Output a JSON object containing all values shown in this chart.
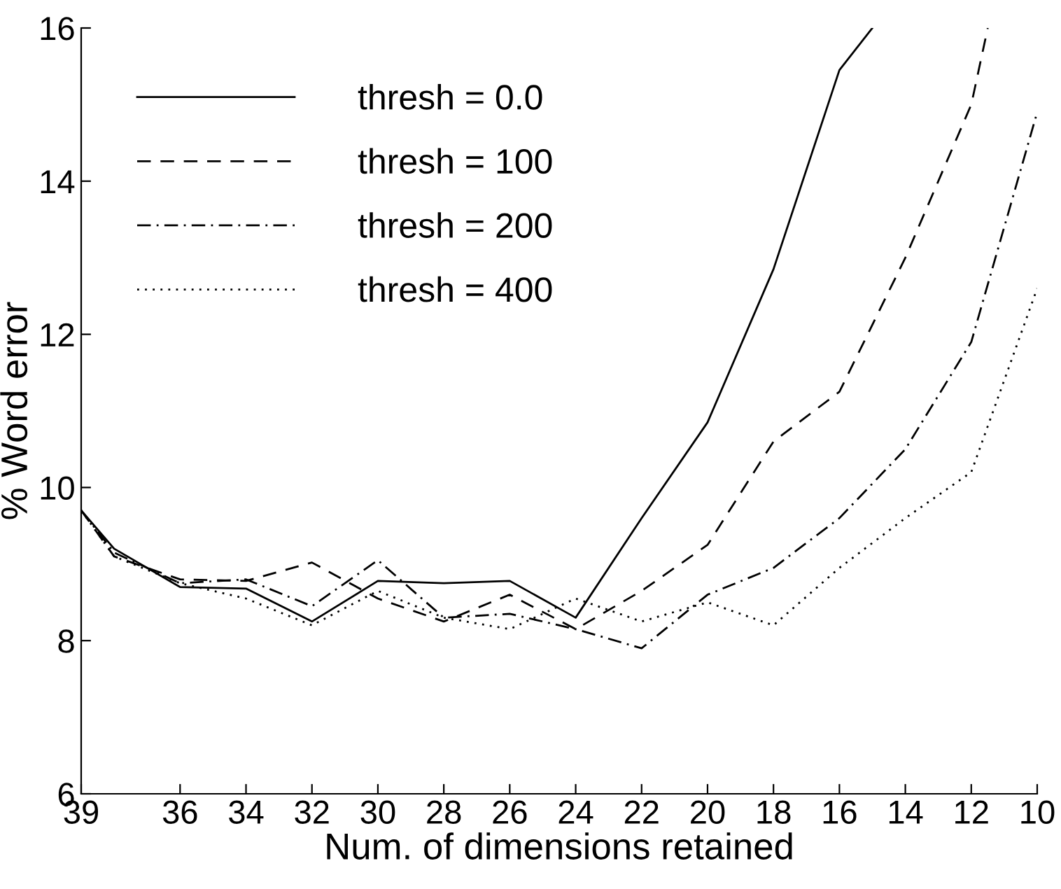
{
  "chart_data": {
    "type": "line",
    "xlabel": "Num. of dimensions retained",
    "ylabel": "% Word error",
    "xlim": [
      39,
      10
    ],
    "ylim": [
      6,
      16
    ],
    "xticks": [
      39,
      36,
      34,
      32,
      30,
      28,
      26,
      24,
      22,
      20,
      18,
      16,
      14,
      12,
      10
    ],
    "yticks": [
      6,
      8,
      10,
      12,
      14,
      16
    ],
    "grid": false,
    "legend": "top left",
    "marker": "none",
    "series": [
      {
        "name": "thresh = 0.0",
        "color": "#000000",
        "line_style": "solid",
        "x": [
          39,
          38,
          36,
          34,
          32,
          30,
          28,
          26,
          24,
          22,
          20,
          18,
          16,
          15
        ],
        "values": [
          9.7,
          9.2,
          8.7,
          8.68,
          8.25,
          8.78,
          8.75,
          8.78,
          8.3,
          9.6,
          10.85,
          12.85,
          15.45,
          16.0
        ]
      },
      {
        "name": "thresh = 100",
        "color": "#000000",
        "line_style": "dashed",
        "x": [
          39,
          38,
          36,
          34,
          32,
          30,
          28,
          26,
          24,
          22,
          20,
          18,
          16,
          14,
          12,
          11.5
        ],
        "values": [
          9.7,
          9.1,
          8.8,
          8.78,
          9.02,
          8.55,
          8.25,
          8.6,
          8.15,
          8.65,
          9.25,
          10.6,
          11.25,
          13.0,
          15.0,
          16.0
        ]
      },
      {
        "name": "thresh = 200",
        "color": "#000000",
        "line_style": "dashdot",
        "x": [
          39,
          38,
          36,
          34,
          32,
          30,
          28,
          26,
          24,
          22,
          20,
          18,
          16,
          14,
          12,
          10
        ],
        "values": [
          9.7,
          9.15,
          8.75,
          8.8,
          8.45,
          9.05,
          8.3,
          8.35,
          8.15,
          7.9,
          8.6,
          8.95,
          9.6,
          10.5,
          11.9,
          14.9
        ]
      },
      {
        "name": "thresh = 400",
        "color": "#000000",
        "line_style": "dotted",
        "x": [
          39,
          38,
          36,
          34,
          32,
          30,
          28,
          26,
          24,
          22,
          20,
          18,
          16,
          14,
          12,
          10
        ],
        "values": [
          9.7,
          9.1,
          8.75,
          8.55,
          8.2,
          8.65,
          8.3,
          8.15,
          8.55,
          8.25,
          8.5,
          8.2,
          8.95,
          9.6,
          10.2,
          12.6
        ]
      }
    ]
  }
}
